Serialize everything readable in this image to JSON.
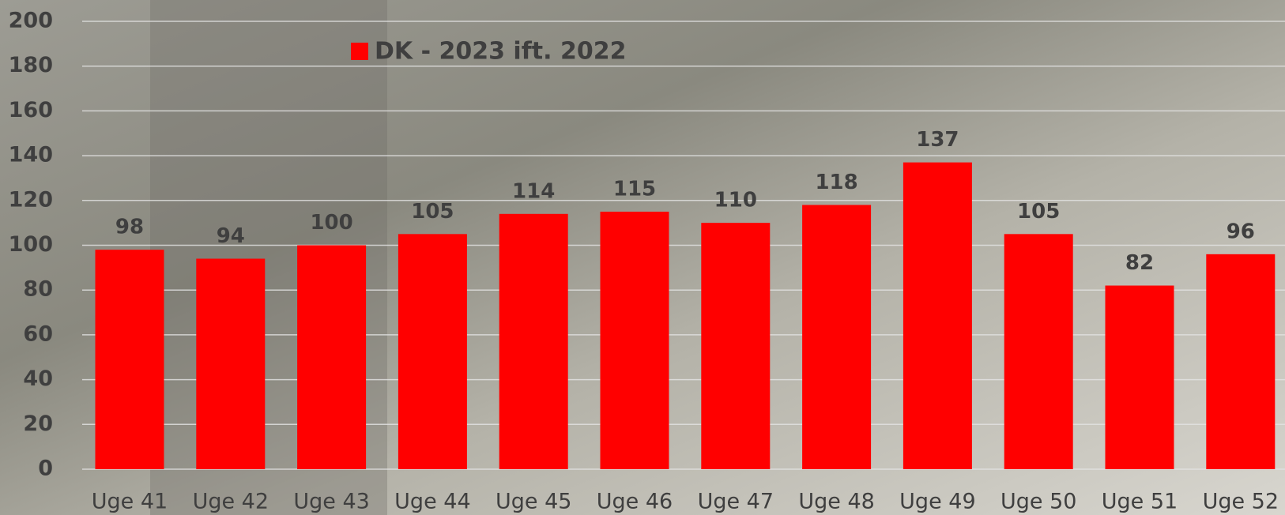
{
  "chart_data": {
    "type": "bar",
    "categories": [
      "Uge 41",
      "Uge 42",
      "Uge 43",
      "Uge 44",
      "Uge 45",
      "Uge 46",
      "Uge 47",
      "Uge 48",
      "Uge 49",
      "Uge 50",
      "Uge 51",
      "Uge 52"
    ],
    "series": [
      {
        "name": "DK - 2023 ift. 2022",
        "color": "#ff0000",
        "values": [
          98,
          94,
          100,
          105,
          114,
          115,
          110,
          118,
          137,
          105,
          82,
          96
        ]
      }
    ],
    "ylim": [
      0,
      200
    ],
    "yticks": [
      0,
      20,
      40,
      60,
      80,
      100,
      120,
      140,
      160,
      180,
      200
    ],
    "grid": true,
    "legend": "top"
  }
}
